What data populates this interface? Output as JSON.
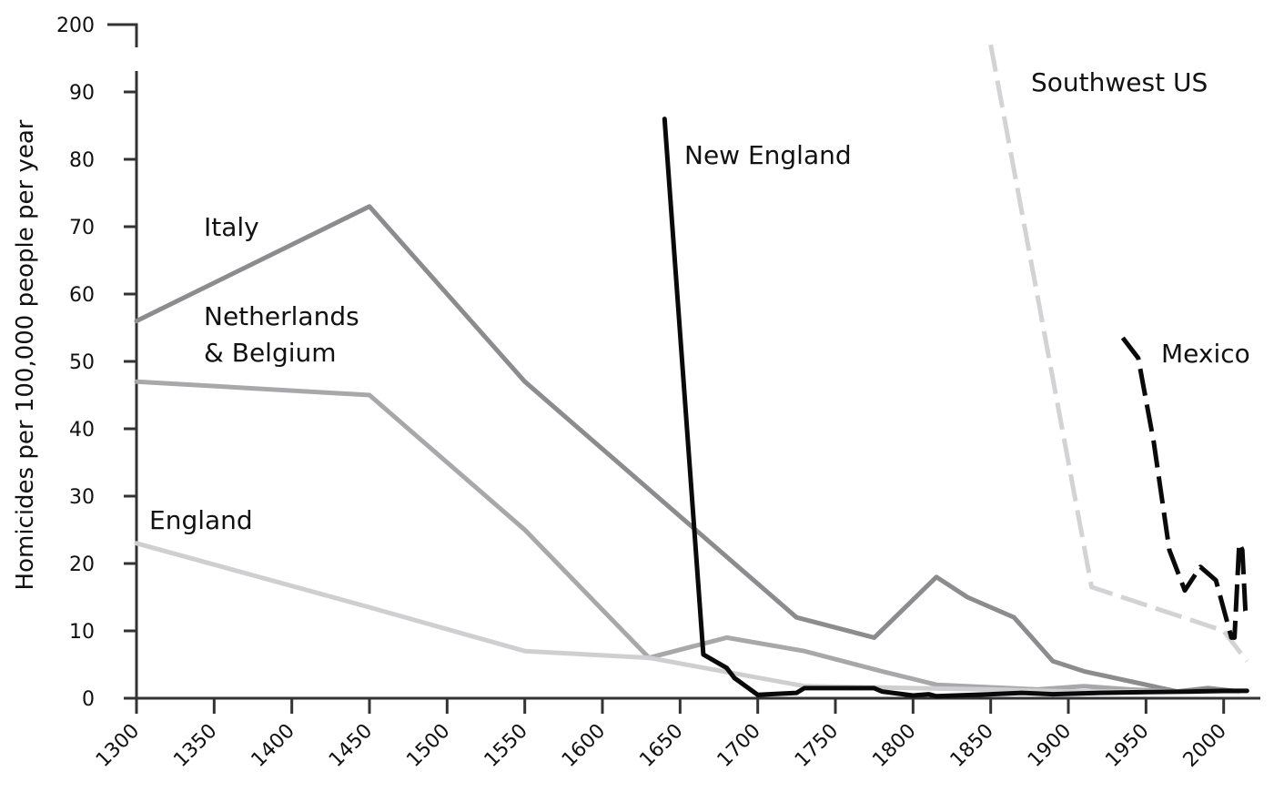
{
  "chart_data": {
    "type": "line",
    "title": "",
    "xlabel": "",
    "ylabel": "Homicides per 100,000 people per year",
    "xlim": [
      1300,
      2015
    ],
    "ylim": [
      0,
      90
    ],
    "y_break": {
      "above": 90,
      "top_tick": 200
    },
    "x_ticks": [
      1300,
      1350,
      1400,
      1450,
      1500,
      1550,
      1600,
      1650,
      1700,
      1750,
      1800,
      1850,
      1900,
      1950,
      2000
    ],
    "y_ticks": [
      0,
      10,
      20,
      30,
      40,
      50,
      60,
      70,
      80,
      90
    ],
    "y_top_tick_label": "200",
    "grid": false,
    "legend": "inline labels",
    "series": [
      {
        "name": "Italy",
        "label_lines": [
          "Italy"
        ],
        "color": "#8c8c8e",
        "dash": "solid",
        "x": [
          1300,
          1450,
          1550,
          1725,
          1775,
          1815,
          1835,
          1865,
          1890,
          1910,
          1940,
          1970,
          1990,
          2010
        ],
        "y": [
          56,
          73,
          47,
          12,
          9,
          18,
          15,
          12,
          5.5,
          4,
          2.5,
          1,
          1.5,
          1
        ]
      },
      {
        "name": "Netherlands & Belgium",
        "label_lines": [
          "Netherlands",
          "& Belgium"
        ],
        "color": "#a8a8aa",
        "dash": "solid",
        "x": [
          1300,
          1450,
          1550,
          1630,
          1680,
          1730,
          1780,
          1815,
          1880,
          1910,
          1940,
          1970,
          2010
        ],
        "y": [
          47,
          45,
          25,
          6,
          9,
          7,
          4,
          2,
          1.3,
          1.8,
          1.3,
          1,
          1
        ]
      },
      {
        "name": "England",
        "label_lines": [
          "England"
        ],
        "color": "#cfcfd1",
        "dash": "solid",
        "x": [
          1300,
          1450,
          1550,
          1630,
          1730,
          1800,
          1850,
          1900,
          1950,
          2010
        ],
        "y": [
          23,
          13.5,
          7,
          6,
          1.8,
          1.5,
          1.3,
          1,
          1,
          1
        ]
      },
      {
        "name": "New England",
        "label_lines": [
          "New England"
        ],
        "color": "#0a0a0a",
        "dash": "solid",
        "x": [
          1640,
          1665,
          1680,
          1685,
          1700,
          1725,
          1730,
          1775,
          1780,
          1800,
          1810,
          1815,
          1850,
          1870,
          1890,
          1920,
          1950,
          1980,
          2000,
          2015
        ],
        "y": [
          86,
          6.5,
          4.5,
          3,
          0.5,
          0.8,
          1.5,
          1.5,
          1,
          0.4,
          0.6,
          0.3,
          0.6,
          0.8,
          0.6,
          0.8,
          0.9,
          1,
          1.1,
          1.1
        ]
      },
      {
        "name": "Southwest US",
        "label_lines": [
          "Southwest US"
        ],
        "color": "#d3d3d5",
        "dash": "dashed",
        "x": [
          1850,
          1915,
          2000,
          2015
        ],
        "y": [
          97,
          16.5,
          10,
          5.5
        ]
      },
      {
        "name": "Mexico",
        "label_lines": [
          "Mexico"
        ],
        "color": "#0a0a0a",
        "dash": "dashed",
        "x": [
          1935,
          1945,
          1955,
          1965,
          1975,
          1985,
          1995,
          2005,
          2007,
          2010,
          2012,
          2014,
          2015
        ],
        "y": [
          53.5,
          50.5,
          38,
          22,
          16,
          19.5,
          17.5,
          9,
          9,
          23,
          22,
          13,
          12.5
        ]
      }
    ]
  }
}
